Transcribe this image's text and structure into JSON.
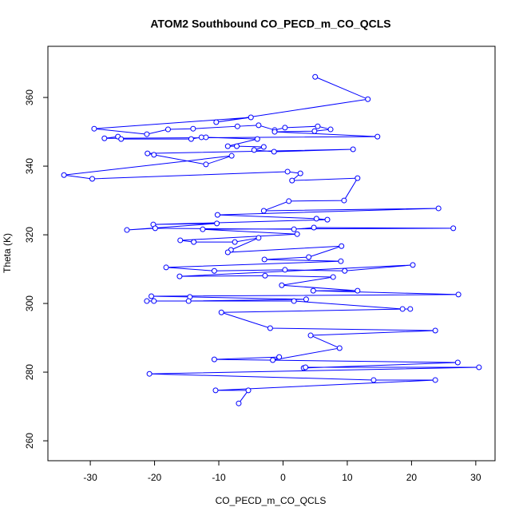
{
  "chart_data": {
    "type": "line",
    "markers": true,
    "title": "ATOM2 Southbound CO_PECD_m_CO_QCLS",
    "x_label": "CO_PECD_m_CO_QCLS",
    "y_label": "Theta (K)",
    "color": "#0000ff",
    "xlim": [
      -36.6,
      33.0
    ],
    "ylim": [
      254.2,
      374.9
    ],
    "xticks": [
      -30,
      -20,
      -10,
      0,
      10,
      20,
      30
    ],
    "yticks": [
      260,
      280,
      300,
      320,
      340,
      360
    ],
    "x": [
      5.0,
      13.2,
      -10.4,
      -5.0,
      -29.4,
      -21.2,
      -17.9,
      -14.0,
      -7.1,
      -3.8,
      -1.3,
      0.3,
      5.4,
      7.4,
      4.9,
      -1.3,
      14.7,
      -27.8,
      -25.7,
      -25.2,
      -14.3,
      -12.7,
      -12.0,
      -4.0,
      -8.6,
      -7.2,
      -3.0,
      -4.5,
      -1.4,
      10.9,
      -21.1,
      -20.1,
      -12.0,
      -8.0,
      -34.1,
      -29.7,
      0.7,
      2.7,
      1.4,
      11.6,
      9.5,
      0.9,
      -3.0,
      24.2,
      -10.2,
      5.2,
      6.9,
      -20.2,
      -10.3,
      -24.3,
      -19.9,
      1.7,
      4.8,
      26.5,
      -12.5,
      2.2,
      -16.0,
      -13.9,
      -7.5,
      -3.8,
      -8.1,
      -8.6,
      9.1,
      4.0,
      -2.9,
      9.0,
      -18.2,
      -10.7,
      0.3,
      9.6,
      20.2,
      -16.1,
      -2.8,
      7.8,
      -0.2,
      11.6,
      4.7,
      27.3,
      -20.5,
      -14.5,
      3.6,
      -14.7,
      -21.2,
      -20.1,
      1.7,
      18.6,
      19.8,
      -9.6,
      -2.0,
      23.7,
      4.3,
      8.8,
      -1.6,
      -0.6,
      -10.7,
      27.2,
      3.2,
      3.5,
      30.5,
      -20.8,
      14.1,
      23.7,
      -10.5,
      -5.4,
      -6.9
    ],
    "y": [
      366.0,
      359.5,
      352.8,
      354.2,
      350.9,
      349.3,
      350.7,
      350.9,
      351.6,
      351.9,
      350.5,
      351.2,
      351.6,
      350.7,
      350.2,
      350.0,
      348.6,
      348.1,
      348.6,
      347.9,
      347.9,
      348.4,
      348.4,
      347.9,
      345.8,
      345.8,
      345.6,
      344.7,
      344.2,
      344.9,
      343.7,
      343.3,
      340.5,
      343.0,
      337.4,
      336.3,
      338.4,
      337.9,
      335.8,
      336.5,
      330.0,
      329.8,
      327.0,
      327.7,
      325.8,
      324.7,
      324.4,
      323.0,
      323.3,
      321.4,
      321.9,
      321.6,
      322.1,
      321.9,
      321.6,
      320.2,
      318.4,
      317.9,
      317.9,
      319.1,
      315.6,
      314.9,
      316.7,
      313.5,
      312.8,
      312.3,
      310.5,
      309.5,
      309.8,
      309.5,
      311.2,
      307.9,
      308.1,
      307.7,
      305.3,
      303.7,
      303.7,
      302.6,
      302.1,
      301.9,
      301.2,
      300.7,
      300.7,
      300.7,
      300.7,
      298.4,
      298.4,
      297.4,
      292.8,
      292.1,
      290.7,
      287.0,
      283.5,
      284.4,
      283.7,
      282.8,
      281.2,
      281.4,
      281.4,
      279.5,
      277.7,
      277.7,
      274.7,
      274.7,
      270.9
    ]
  }
}
